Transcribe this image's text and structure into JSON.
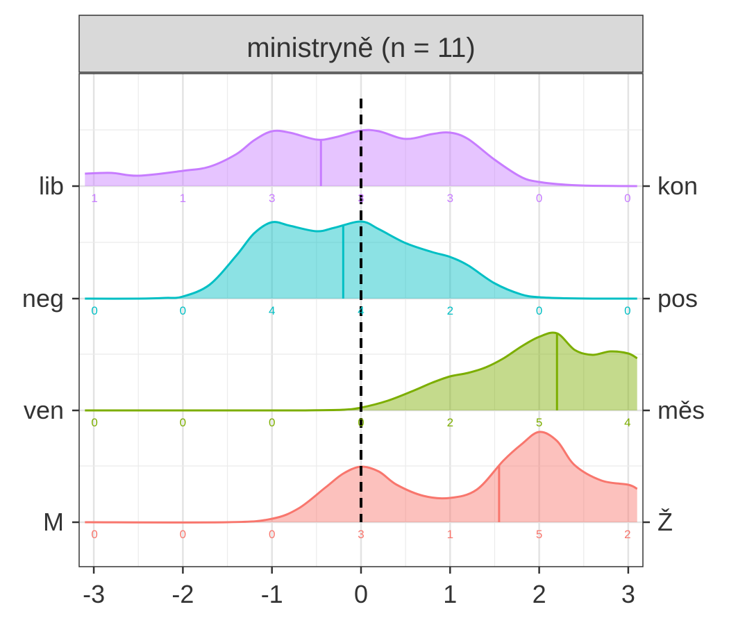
{
  "chart_data": {
    "type": "area",
    "title": "ministryně (n = 11)",
    "xlim": [
      -3,
      3
    ],
    "x_ticks": [
      "-3",
      "-2",
      "-1",
      "0",
      "1",
      "2",
      "3"
    ],
    "reference_line_x": 0,
    "grid": true,
    "rows": [
      {
        "left_label": "lib",
        "right_label": "kon",
        "color": "#C77CFF",
        "mean": -0.45,
        "counts": [
          "1",
          "1",
          "3",
          "3",
          "3",
          "0",
          "0"
        ],
        "density": {
          "x": [
            -3.1,
            -2.8,
            -2.5,
            -2.0,
            -1.7,
            -1.4,
            -1.2,
            -1.0,
            -0.8,
            -0.5,
            -0.3,
            0.0,
            0.2,
            0.5,
            0.8,
            1.0,
            1.2,
            1.5,
            1.8,
            2.0,
            2.3,
            2.6,
            3.1
          ],
          "y": [
            0.18,
            0.19,
            0.15,
            0.22,
            0.28,
            0.46,
            0.66,
            0.79,
            0.77,
            0.67,
            0.7,
            0.8,
            0.79,
            0.68,
            0.75,
            0.77,
            0.68,
            0.38,
            0.13,
            0.06,
            0.02,
            0.005,
            0.0
          ]
        }
      },
      {
        "left_label": "neg",
        "right_label": "pos",
        "color": "#00BFC4",
        "mean": -0.2,
        "counts": [
          "0",
          "0",
          "4",
          "4",
          "2",
          "0",
          "0"
        ],
        "density": {
          "x": [
            -3.1,
            -2.5,
            -2.2,
            -2.0,
            -1.7,
            -1.4,
            -1.2,
            -1.0,
            -0.8,
            -0.5,
            -0.3,
            0.0,
            0.2,
            0.5,
            0.8,
            1.0,
            1.2,
            1.5,
            1.8,
            2.0,
            2.3,
            2.6,
            3.1
          ],
          "y": [
            0.0,
            0.0,
            0.01,
            0.03,
            0.2,
            0.62,
            0.94,
            1.1,
            1.05,
            0.97,
            1.02,
            1.11,
            1.0,
            0.8,
            0.67,
            0.6,
            0.48,
            0.22,
            0.06,
            0.02,
            0.005,
            0.0,
            0.0
          ]
        }
      },
      {
        "left_label": "ven",
        "right_label": "měs",
        "color": "#7CAE00",
        "mean": 2.2,
        "counts": [
          "0",
          "0",
          "0",
          "0",
          "2",
          "5",
          "4"
        ],
        "density": {
          "x": [
            -3.1,
            -1.0,
            -0.5,
            -0.2,
            0.0,
            0.3,
            0.6,
            0.8,
            1.0,
            1.2,
            1.4,
            1.6,
            1.8,
            2.0,
            2.2,
            2.4,
            2.6,
            2.8,
            3.0,
            3.1
          ],
          "y": [
            0.0,
            0.0,
            0.003,
            0.01,
            0.04,
            0.14,
            0.29,
            0.4,
            0.49,
            0.54,
            0.62,
            0.75,
            0.92,
            1.06,
            1.11,
            0.87,
            0.8,
            0.85,
            0.82,
            0.75
          ]
        }
      },
      {
        "left_label": "M",
        "right_label": "Ž",
        "color": "#F8766D",
        "mean": 1.55,
        "counts": [
          "0",
          "0",
          "0",
          "3",
          "1",
          "5",
          "2"
        ],
        "density": {
          "x": [
            -3.1,
            -1.5,
            -1.0,
            -0.7,
            -0.4,
            -0.2,
            0.0,
            0.2,
            0.4,
            0.7,
            1.0,
            1.3,
            1.6,
            1.8,
            2.0,
            2.2,
            2.4,
            2.7,
            3.0,
            3.1
          ],
          "y": [
            0.0,
            0.0,
            0.05,
            0.2,
            0.5,
            0.7,
            0.8,
            0.73,
            0.54,
            0.38,
            0.35,
            0.47,
            0.89,
            1.12,
            1.3,
            1.17,
            0.82,
            0.6,
            0.54,
            0.48
          ]
        }
      }
    ]
  }
}
